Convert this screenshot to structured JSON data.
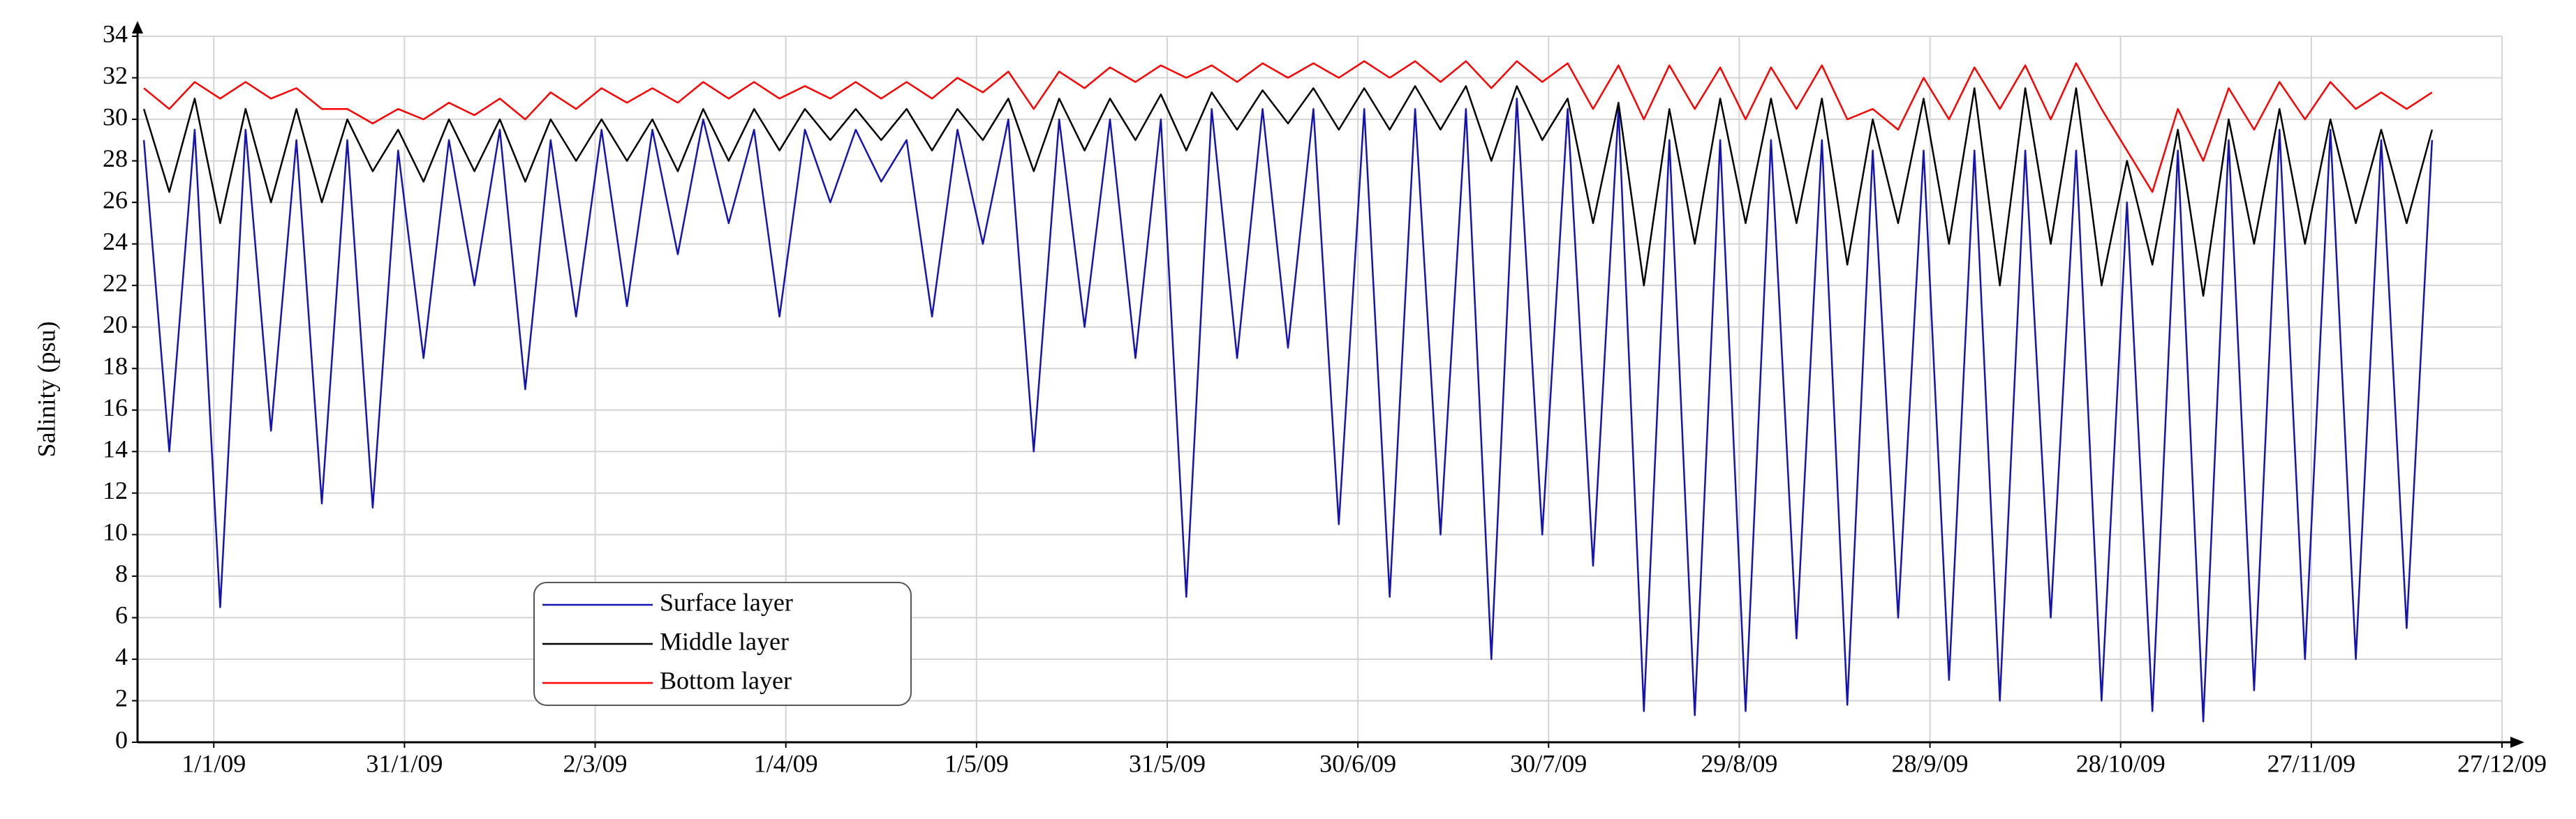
{
  "chart_data": {
    "type": "line",
    "y_label": "Salinity (psu)",
    "x": [
      "2008-12-21",
      "2008-12-25",
      "2008-12-29",
      "2009-01-02",
      "2009-01-06",
      "2009-01-10",
      "2009-01-14",
      "2009-01-18",
      "2009-01-22",
      "2009-01-26",
      "2009-01-30",
      "2009-02-03",
      "2009-02-07",
      "2009-02-11",
      "2009-02-15",
      "2009-02-19",
      "2009-02-23",
      "2009-02-27",
      "2009-03-03",
      "2009-03-07",
      "2009-03-11",
      "2009-03-15",
      "2009-03-19",
      "2009-03-23",
      "2009-03-27",
      "2009-03-31",
      "2009-04-04",
      "2009-04-08",
      "2009-04-12",
      "2009-04-16",
      "2009-04-20",
      "2009-04-24",
      "2009-04-28",
      "2009-05-02",
      "2009-05-06",
      "2009-05-10",
      "2009-05-14",
      "2009-05-18",
      "2009-05-22",
      "2009-05-26",
      "2009-05-30",
      "2009-06-03",
      "2009-06-07",
      "2009-06-11",
      "2009-06-15",
      "2009-06-19",
      "2009-06-23",
      "2009-06-27",
      "2009-07-01",
      "2009-07-05",
      "2009-07-09",
      "2009-07-13",
      "2009-07-17",
      "2009-07-21",
      "2009-07-25",
      "2009-07-29",
      "2009-08-02",
      "2009-08-06",
      "2009-08-10",
      "2009-08-14",
      "2009-08-18",
      "2009-08-22",
      "2009-08-26",
      "2009-08-30",
      "2009-09-03",
      "2009-09-07",
      "2009-09-11",
      "2009-09-15",
      "2009-09-19",
      "2009-09-23",
      "2009-09-27",
      "2009-10-01",
      "2009-10-05",
      "2009-10-09",
      "2009-10-13",
      "2009-10-17",
      "2009-10-21",
      "2009-10-25",
      "2009-10-29",
      "2009-11-02",
      "2009-11-06",
      "2009-11-10",
      "2009-11-14",
      "2009-11-18",
      "2009-11-22",
      "2009-11-26",
      "2009-11-30",
      "2009-12-04",
      "2009-12-08",
      "2009-12-12",
      "2009-12-16"
    ],
    "series": [
      {
        "name": "Surface layer",
        "color": "#1414b4",
        "values": [
          29,
          14,
          29.5,
          6.5,
          29.5,
          15,
          29,
          11.5,
          29,
          11.3,
          28.5,
          18.5,
          29,
          22,
          29.5,
          17,
          29,
          20.5,
          29.5,
          21,
          29.5,
          23.5,
          30,
          25,
          29.5,
          20.5,
          29.5,
          26,
          29.5,
          27,
          29,
          20.5,
          29.5,
          24,
          30,
          14,
          30,
          20,
          30,
          18.5,
          30,
          7,
          30.5,
          18.5,
          30.5,
          19,
          30.5,
          10.5,
          30.5,
          7,
          30.5,
          10,
          30.5,
          4,
          31,
          10,
          30.5,
          8.5,
          30.5,
          1.5,
          29,
          1.3,
          29,
          1.5,
          29,
          5,
          29,
          1.8,
          28.5,
          6,
          28.5,
          3,
          28.5,
          2,
          28.5,
          6,
          28.5,
          2,
          26,
          1.5,
          28.5,
          1,
          29,
          2.5,
          29.5,
          4,
          29.5,
          4,
          29,
          5.5,
          29
        ]
      },
      {
        "name": "Middle layer",
        "color": "#000000",
        "values": [
          30.5,
          26.5,
          31,
          25,
          30.5,
          26,
          30.5,
          26,
          30,
          27.5,
          29.5,
          27,
          30,
          27.5,
          30,
          27,
          30,
          28,
          30,
          28,
          30,
          27.5,
          30.5,
          28,
          30.5,
          28.5,
          30.5,
          29,
          30.5,
          29,
          30.5,
          28.5,
          30.5,
          29,
          31,
          27.5,
          31,
          28.5,
          31,
          29,
          31.2,
          28.5,
          31.3,
          29.5,
          31.4,
          29.8,
          31.5,
          29.5,
          31.5,
          29.5,
          31.6,
          29.5,
          31.6,
          28,
          31.6,
          29,
          31,
          25,
          30.8,
          22,
          30.5,
          24,
          31,
          25,
          31,
          25,
          31,
          23,
          30,
          25,
          31,
          24,
          31.5,
          22,
          31.5,
          24,
          31.5,
          22,
          28,
          23,
          29.5,
          21.5,
          30,
          24,
          30.5,
          24,
          30,
          25,
          29.5,
          25,
          29.5
        ]
      },
      {
        "name": "Bottom layer",
        "color": "#ff0000",
        "values": [
          31.5,
          30.5,
          31.8,
          31,
          31.8,
          31,
          31.5,
          30.5,
          30.5,
          29.8,
          30.5,
          30,
          30.8,
          30.2,
          31,
          30,
          31.3,
          30.5,
          31.5,
          30.8,
          31.5,
          30.8,
          31.8,
          31,
          31.8,
          31,
          31.6,
          31,
          31.8,
          31,
          31.8,
          31,
          32,
          31.3,
          32.3,
          30.5,
          32.3,
          31.5,
          32.5,
          31.8,
          32.6,
          32,
          32.6,
          31.8,
          32.7,
          32,
          32.7,
          32,
          32.8,
          32,
          32.8,
          31.8,
          32.8,
          31.5,
          32.8,
          31.8,
          32.7,
          30.5,
          32.6,
          30,
          32.6,
          30.5,
          32.5,
          30,
          32.5,
          30.5,
          32.6,
          30,
          30.5,
          29.5,
          32,
          30,
          32.5,
          30.5,
          32.6,
          30,
          32.7,
          30.5,
          28.5,
          26.5,
          30.5,
          28,
          31.5,
          29.5,
          31.8,
          30,
          31.8,
          30.5,
          31.3,
          30.5,
          31.3
        ]
      }
    ],
    "xlim": [
      "2008-12-20",
      "2009-12-27"
    ],
    "xticks": [
      {
        "value": "2009-01-01",
        "label": "1/1/09"
      },
      {
        "value": "2009-01-31",
        "label": "31/1/09"
      },
      {
        "value": "2009-03-02",
        "label": "2/3/09"
      },
      {
        "value": "2009-04-01",
        "label": "1/4/09"
      },
      {
        "value": "2009-05-01",
        "label": "1/5/09"
      },
      {
        "value": "2009-05-31",
        "label": "31/5/09"
      },
      {
        "value": "2009-06-30",
        "label": "30/6/09"
      },
      {
        "value": "2009-07-30",
        "label": "30/7/09"
      },
      {
        "value": "2009-08-29",
        "label": "29/8/09"
      },
      {
        "value": "2009-09-28",
        "label": "28/9/09"
      },
      {
        "value": "2009-10-28",
        "label": "28/10/09"
      },
      {
        "value": "2009-11-27",
        "label": "27/11/09"
      },
      {
        "value": "2009-12-27",
        "label": "27/12/09"
      }
    ],
    "ylim": [
      0,
      34
    ],
    "yticks": [
      0,
      2,
      4,
      6,
      8,
      10,
      12,
      14,
      16,
      18,
      20,
      22,
      24,
      26,
      28,
      30,
      32,
      34
    ],
    "grid": true,
    "legend": "lower-left"
  }
}
